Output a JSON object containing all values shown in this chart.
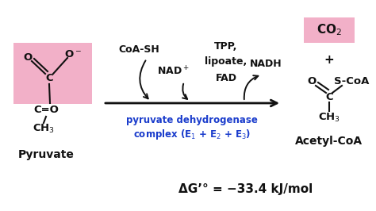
{
  "bg_color": "#ffffff",
  "pink_color": "#f2b0c8",
  "text_black": "#111111",
  "text_blue": "#1a3ccc",
  "fig_width": 4.74,
  "fig_height": 2.66,
  "dpi": 100,
  "pyruvate_label": "Pyruvate",
  "acetylcoa_label": "Acetyl-CoA",
  "co2_label": "CO$_2$",
  "coa_sh_label": "CoA-SH",
  "nad_label": "NAD$^+$",
  "tpp_label": "TPP,",
  "lipoate_label": "lipoate,",
  "fad_label": "FAD",
  "nadh_label": "NADH",
  "enzyme_line1": "pyruvate dehydrogenase",
  "enzyme_line2": "complex (E$_1$ + E$_2$ + E$_3$)",
  "delta_g": "ΔG’° = −33.4 kJ/mol",
  "plus_label": "+"
}
